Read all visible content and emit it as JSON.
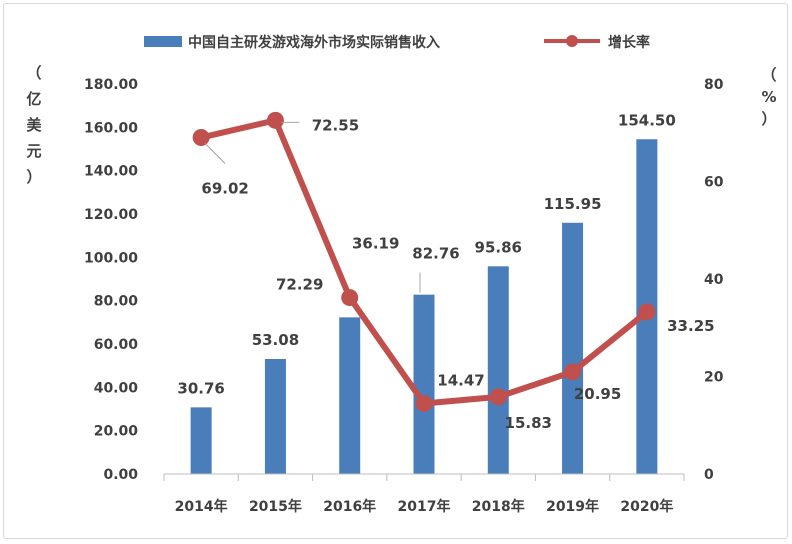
{
  "chart_data": {
    "type": "bar+line",
    "categories": [
      "2014年",
      "2015年",
      "2016年",
      "2017年",
      "2018年",
      "2019年",
      "2020年"
    ],
    "series": [
      {
        "name": "中国自主研发游戏海外市场实际销售收入",
        "type": "bar",
        "axis": "left",
        "color": "#4a7ebb",
        "values": [
          30.76,
          53.08,
          72.29,
          82.76,
          95.86,
          115.95,
          154.5
        ],
        "labels": [
          "30.76",
          "53.08",
          "72.29",
          "82.76",
          "95.86",
          "115.95",
          "154.50"
        ]
      },
      {
        "name": "增长率",
        "type": "line",
        "axis": "right",
        "color": "#c0504d",
        "values": [
          69.02,
          72.55,
          36.19,
          14.47,
          15.83,
          20.95,
          33.25
        ],
        "labels": [
          "69.02",
          "72.55",
          "36.19",
          "14.47",
          "15.83",
          "20.95",
          "33.25"
        ]
      }
    ],
    "ylabel_left": [
      "（",
      "亿",
      "美",
      "元",
      "）"
    ],
    "ylabel_right": [
      "（",
      "%",
      "）"
    ],
    "ylim_left": [
      0,
      180
    ],
    "yticks_left": [
      "0.00",
      "20.00",
      "40.00",
      "60.00",
      "80.00",
      "100.00",
      "120.00",
      "140.00",
      "160.00",
      "180.00"
    ],
    "ylim_right": [
      0,
      80
    ],
    "yticks_right": [
      "0",
      "20",
      "40",
      "60",
      "80"
    ],
    "grid": false,
    "legend": "top"
  }
}
